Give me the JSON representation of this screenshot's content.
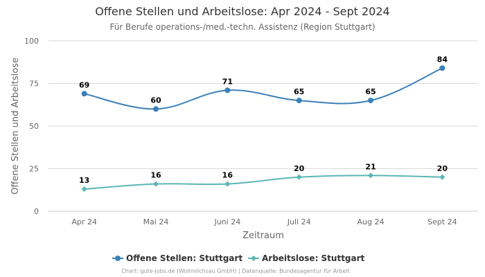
{
  "chart_data": {
    "type": "line",
    "title": "Offene Stellen und Arbeitslose: Apr 2024 - Sept 2024",
    "subtitle": "Für Berufe operations-/med.-techn. Assistenz (Region Stuttgart)",
    "xlabel": "Zeitraum",
    "ylabel": "Offene Stellen und Arbeitslose",
    "categories": [
      "Apr 24",
      "Mai 24",
      "Juni 24",
      "Juli 24",
      "Aug 24",
      "Sept 24"
    ],
    "ylim": [
      0,
      100
    ],
    "yticks": [
      0,
      25,
      50,
      75,
      100
    ],
    "grid": true,
    "legend_position": "bottom",
    "series": [
      {
        "name": "Offene Stellen: Stuttgart",
        "values": [
          69,
          60,
          71,
          65,
          65,
          84
        ],
        "color": "#3c80b8",
        "marker": "circle"
      },
      {
        "name": "Arbeitslose: Stuttgart",
        "values": [
          13,
          16,
          16,
          20,
          21,
          20
        ],
        "color": "#5ab6b4",
        "marker": "diamond"
      }
    ],
    "credits": "Chart: gute-jobs.de (Wollmilchsau GmbH) | Datenquelle: Bundesagentur für Arbeit"
  }
}
